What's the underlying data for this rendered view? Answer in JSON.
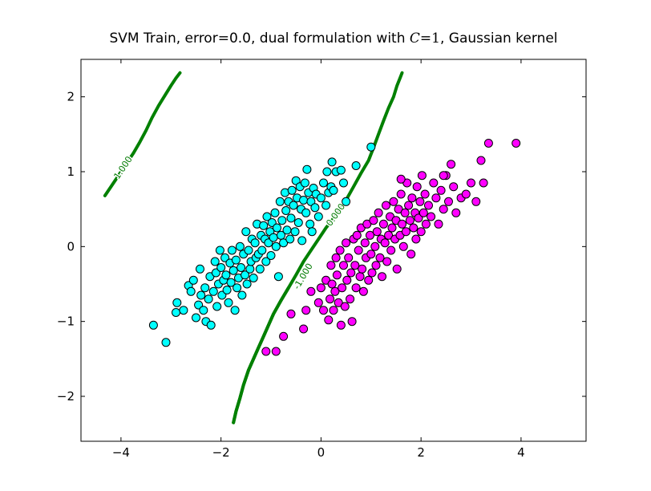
{
  "chart_data": {
    "type": "scatter",
    "title": "SVM Train, error=0.0, dual formulation with C=1, Gaussian kernel",
    "title_parts": {
      "prefix": "SVM Train, error=0.0, dual formulation with ",
      "math_var": "C",
      "math_eq": "=1",
      "suffix": ", Gaussian kernel"
    },
    "xlabel": "",
    "ylabel": "",
    "xlim": [
      -4.8,
      5.3
    ],
    "ylim": [
      -2.6,
      2.5
    ],
    "x_ticks": [
      -4,
      -2,
      0,
      2,
      4
    ],
    "y_ticks": [
      -2,
      -1,
      0,
      1,
      2
    ],
    "x_tick_labels": [
      "−4",
      "−2",
      "0",
      "2",
      "4"
    ],
    "y_tick_labels": [
      "−2",
      "−1",
      "0",
      "1",
      "2"
    ],
    "grid": false,
    "colors": {
      "class_a": "#00ffff",
      "class_b": "#ff00ff",
      "contour": "#008000",
      "contour_label": "#007a00",
      "marker_edge": "#000000"
    },
    "series": [
      {
        "points": [
          [
            -3.35,
            -1.05
          ],
          [
            -3.1,
            -1.28
          ],
          [
            -2.9,
            -0.88
          ],
          [
            -2.88,
            -0.75
          ],
          [
            -2.75,
            -0.85
          ],
          [
            -2.65,
            -0.52
          ],
          [
            -2.6,
            -0.6
          ],
          [
            -2.55,
            -0.45
          ],
          [
            -2.5,
            -0.95
          ],
          [
            -2.45,
            -0.78
          ],
          [
            -2.42,
            -0.3
          ],
          [
            -2.4,
            -0.65
          ],
          [
            -2.35,
            -0.85
          ],
          [
            -2.32,
            -0.55
          ],
          [
            -2.3,
            -1.0
          ],
          [
            -2.25,
            -0.7
          ],
          [
            -2.22,
            -0.4
          ],
          [
            -2.2,
            -1.05
          ],
          [
            -2.15,
            -0.6
          ],
          [
            -2.12,
            -0.2
          ],
          [
            -2.1,
            -0.35
          ],
          [
            -2.08,
            -0.8
          ],
          [
            -2.05,
            -0.5
          ],
          [
            -2.02,
            -0.05
          ],
          [
            -2.0,
            -0.28
          ],
          [
            -1.98,
            -0.65
          ],
          [
            -1.95,
            -0.45
          ],
          [
            -1.92,
            -0.15
          ],
          [
            -1.9,
            -0.38
          ],
          [
            -1.88,
            -0.58
          ],
          [
            -1.85,
            -0.75
          ],
          [
            -1.82,
            -0.22
          ],
          [
            -1.8,
            -0.48
          ],
          [
            -1.78,
            -0.05
          ],
          [
            -1.75,
            -0.32
          ],
          [
            -1.72,
            -0.85
          ],
          [
            -1.7,
            -0.18
          ],
          [
            -1.68,
            -0.55
          ],
          [
            -1.65,
            -0.42
          ],
          [
            -1.62,
            0.0
          ],
          [
            -1.6,
            -0.28
          ],
          [
            -1.58,
            -0.65
          ],
          [
            -1.55,
            -0.1
          ],
          [
            -1.52,
            -0.38
          ],
          [
            -1.5,
            0.2
          ],
          [
            -1.48,
            -0.5
          ],
          [
            -1.45,
            -0.05
          ],
          [
            -1.42,
            -0.3
          ],
          [
            -1.4,
            -0.2
          ],
          [
            -1.38,
            0.1
          ],
          [
            -1.35,
            -0.42
          ],
          [
            -1.32,
            0.05
          ],
          [
            -1.3,
            -0.15
          ],
          [
            -1.28,
            0.3
          ],
          [
            -1.25,
            -0.1
          ],
          [
            -1.22,
            -0.3
          ],
          [
            -1.2,
            0.15
          ],
          [
            -1.18,
            -0.05
          ],
          [
            -1.15,
            0.28
          ],
          [
            -1.12,
            0.1
          ],
          [
            -1.1,
            -0.2
          ],
          [
            -1.08,
            0.4
          ],
          [
            -1.05,
            0.05
          ],
          [
            -1.02,
            0.2
          ],
          [
            -1.0,
            -0.12
          ],
          [
            -0.98,
            0.32
          ],
          [
            -0.95,
            0.12
          ],
          [
            -0.92,
            0.45
          ],
          [
            -0.9,
            0.0
          ],
          [
            -0.88,
            0.25
          ],
          [
            -0.85,
            -0.4
          ],
          [
            -0.82,
            0.6
          ],
          [
            -0.8,
            0.15
          ],
          [
            -0.78,
            0.35
          ],
          [
            -0.75,
            0.05
          ],
          [
            -0.72,
            0.72
          ],
          [
            -0.7,
            0.48
          ],
          [
            -0.68,
            0.22
          ],
          [
            -0.65,
            0.6
          ],
          [
            -0.62,
            0.1
          ],
          [
            -0.6,
            0.38
          ],
          [
            -0.58,
            0.75
          ],
          [
            -0.55,
            0.55
          ],
          [
            -0.52,
            0.2
          ],
          [
            -0.5,
            0.88
          ],
          [
            -0.48,
            0.65
          ],
          [
            -0.45,
            0.32
          ],
          [
            -0.42,
            0.8
          ],
          [
            -0.4,
            0.5
          ],
          [
            -0.38,
            0.08
          ],
          [
            -0.35,
            0.62
          ],
          [
            -0.32,
            0.85
          ],
          [
            -0.3,
            0.45
          ],
          [
            -0.28,
            1.03
          ],
          [
            -0.25,
            0.72
          ],
          [
            -0.22,
            0.3
          ],
          [
            -0.2,
            0.6
          ],
          [
            -0.18,
            0.2
          ],
          [
            -0.15,
            0.78
          ],
          [
            -0.12,
            0.52
          ],
          [
            -0.1,
            0.7
          ],
          [
            -0.05,
            0.4
          ],
          [
            0.0,
            0.65
          ],
          [
            0.05,
            0.85
          ],
          [
            0.1,
            0.55
          ],
          [
            0.15,
            0.72
          ],
          [
            0.2,
            0.8
          ],
          [
            0.22,
            1.13
          ],
          [
            0.25,
            0.75
          ],
          [
            0.3,
            1.0
          ],
          [
            0.4,
            1.02
          ],
          [
            0.45,
            0.85
          ],
          [
            0.5,
            0.6
          ],
          [
            0.7,
            1.08
          ],
          [
            1.0,
            1.33
          ],
          [
            0.12,
            1.0
          ]
        ]
      },
      {
        "points": [
          [
            -1.1,
            -1.4
          ],
          [
            -0.9,
            -1.4
          ],
          [
            -0.75,
            -1.2
          ],
          [
            -0.6,
            -0.9
          ],
          [
            -0.35,
            -1.1
          ],
          [
            -0.3,
            -0.85
          ],
          [
            -0.2,
            -0.6
          ],
          [
            -0.05,
            -0.75
          ],
          [
            0.0,
            -0.55
          ],
          [
            0.05,
            -0.85
          ],
          [
            0.1,
            -0.45
          ],
          [
            0.15,
            -0.98
          ],
          [
            0.18,
            -0.7
          ],
          [
            0.2,
            -0.25
          ],
          [
            0.22,
            -0.5
          ],
          [
            0.25,
            -0.85
          ],
          [
            0.28,
            -0.6
          ],
          [
            0.3,
            -0.15
          ],
          [
            0.32,
            -0.38
          ],
          [
            0.35,
            -0.75
          ],
          [
            0.38,
            -0.05
          ],
          [
            0.4,
            -1.05
          ],
          [
            0.42,
            -0.55
          ],
          [
            0.45,
            -0.25
          ],
          [
            0.48,
            -0.8
          ],
          [
            0.5,
            0.05
          ],
          [
            0.52,
            -0.45
          ],
          [
            0.55,
            -0.15
          ],
          [
            0.58,
            -0.7
          ],
          [
            0.6,
            -0.35
          ],
          [
            0.62,
            -1.0
          ],
          [
            0.65,
            0.1
          ],
          [
            0.68,
            -0.25
          ],
          [
            0.7,
            -0.55
          ],
          [
            0.72,
            0.15
          ],
          [
            0.75,
            -0.05
          ],
          [
            0.78,
            -0.4
          ],
          [
            0.8,
            0.25
          ],
          [
            0.82,
            -0.3
          ],
          [
            0.85,
            -0.6
          ],
          [
            0.88,
            0.05
          ],
          [
            0.9,
            -0.15
          ],
          [
            0.92,
            0.3
          ],
          [
            0.95,
            -0.45
          ],
          [
            0.98,
            0.15
          ],
          [
            1.0,
            -0.1
          ],
          [
            1.02,
            -0.35
          ],
          [
            1.05,
            0.35
          ],
          [
            1.08,
            0.0
          ],
          [
            1.1,
            -0.25
          ],
          [
            1.12,
            0.2
          ],
          [
            1.15,
            0.45
          ],
          [
            1.18,
            -0.15
          ],
          [
            1.2,
            0.1
          ],
          [
            1.22,
            -0.4
          ],
          [
            1.25,
            0.3
          ],
          [
            1.28,
            0.05
          ],
          [
            1.3,
            0.55
          ],
          [
            1.32,
            -0.2
          ],
          [
            1.35,
            0.15
          ],
          [
            1.38,
            0.4
          ],
          [
            1.4,
            -0.05
          ],
          [
            1.42,
            0.25
          ],
          [
            1.45,
            0.6
          ],
          [
            1.48,
            0.1
          ],
          [
            1.5,
            0.35
          ],
          [
            1.52,
            -0.3
          ],
          [
            1.55,
            0.5
          ],
          [
            1.58,
            0.15
          ],
          [
            1.6,
            0.7
          ],
          [
            1.62,
            0.3
          ],
          [
            1.65,
            0.0
          ],
          [
            1.68,
            0.45
          ],
          [
            1.7,
            0.2
          ],
          [
            1.72,
            0.85
          ],
          [
            1.75,
            0.55
          ],
          [
            1.78,
            0.35
          ],
          [
            1.8,
            -0.1
          ],
          [
            1.82,
            0.65
          ],
          [
            1.85,
            0.25
          ],
          [
            1.88,
            0.45
          ],
          [
            1.9,
            0.1
          ],
          [
            1.92,
            0.8
          ],
          [
            1.95,
            0.38
          ],
          [
            1.98,
            0.6
          ],
          [
            2.0,
            0.2
          ],
          [
            2.02,
            0.95
          ],
          [
            2.05,
            0.45
          ],
          [
            2.08,
            0.7
          ],
          [
            2.1,
            0.3
          ],
          [
            2.15,
            0.55
          ],
          [
            2.2,
            0.4
          ],
          [
            2.25,
            0.85
          ],
          [
            2.3,
            0.65
          ],
          [
            2.35,
            0.3
          ],
          [
            2.4,
            0.75
          ],
          [
            2.45,
            0.5
          ],
          [
            2.5,
            0.95
          ],
          [
            2.55,
            0.6
          ],
          [
            2.6,
            1.1
          ],
          [
            2.65,
            0.8
          ],
          [
            2.7,
            0.45
          ],
          [
            2.8,
            0.65
          ],
          [
            2.9,
            0.7
          ],
          [
            3.0,
            0.85
          ],
          [
            3.1,
            0.6
          ],
          [
            3.2,
            1.15
          ],
          [
            3.25,
            0.85
          ],
          [
            3.35,
            1.38
          ],
          [
            3.9,
            1.38
          ],
          [
            2.45,
            0.95
          ],
          [
            1.6,
            0.9
          ]
        ]
      }
    ],
    "decision_contours": [
      {
        "label": "0.000",
        "points": [
          [
            -1.75,
            -2.35
          ],
          [
            -1.7,
            -2.2
          ],
          [
            -1.62,
            -2.02
          ],
          [
            -1.55,
            -1.85
          ],
          [
            -1.45,
            -1.65
          ],
          [
            -1.35,
            -1.5
          ],
          [
            -1.25,
            -1.35
          ],
          [
            -1.15,
            -1.2
          ],
          [
            -1.05,
            -1.05
          ],
          [
            -0.95,
            -0.9
          ],
          [
            -0.8,
            -0.72
          ],
          [
            -0.65,
            -0.55
          ],
          [
            -0.5,
            -0.38
          ],
          [
            -0.35,
            -0.2
          ],
          [
            -0.2,
            -0.05
          ],
          [
            -0.05,
            0.1
          ],
          [
            0.1,
            0.25
          ],
          [
            0.3,
            0.42
          ],
          [
            0.5,
            0.62
          ],
          [
            0.65,
            0.8
          ],
          [
            0.8,
            0.98
          ],
          [
            0.95,
            1.15
          ],
          [
            1.05,
            1.32
          ],
          [
            1.15,
            1.5
          ],
          [
            1.25,
            1.68
          ],
          [
            1.35,
            1.85
          ],
          [
            1.45,
            2.0
          ],
          [
            1.52,
            2.15
          ],
          [
            1.58,
            2.25
          ],
          [
            1.62,
            2.32
          ]
        ],
        "label_pos": [
          0.3,
          0.42
        ]
      },
      {
        "label": "-1.000",
        "points": [
          [
            -1.75,
            -2.35
          ],
          [
            -1.7,
            -2.2
          ],
          [
            -1.62,
            -2.02
          ],
          [
            -1.55,
            -1.85
          ],
          [
            -1.45,
            -1.65
          ],
          [
            -1.35,
            -1.5
          ],
          [
            -1.25,
            -1.35
          ],
          [
            -1.15,
            -1.2
          ],
          [
            -1.05,
            -1.05
          ],
          [
            -0.95,
            -0.9
          ],
          [
            -0.8,
            -0.72
          ],
          [
            -0.65,
            -0.55
          ]
        ],
        "label_pos": [
          -0.35,
          -0.4
        ]
      },
      {
        "label": "1.000",
        "points": [
          [
            -4.32,
            0.68
          ],
          [
            -4.2,
            0.8
          ],
          [
            -4.05,
            0.95
          ],
          [
            -3.9,
            1.1
          ],
          [
            -3.75,
            1.25
          ],
          [
            -3.62,
            1.4
          ],
          [
            -3.5,
            1.55
          ],
          [
            -3.38,
            1.72
          ],
          [
            -3.25,
            1.88
          ],
          [
            -3.12,
            2.02
          ],
          [
            -3.0,
            2.15
          ],
          [
            -2.9,
            2.25
          ],
          [
            -2.82,
            2.32
          ]
        ],
        "label_pos": [
          -3.95,
          1.05
        ]
      }
    ]
  }
}
